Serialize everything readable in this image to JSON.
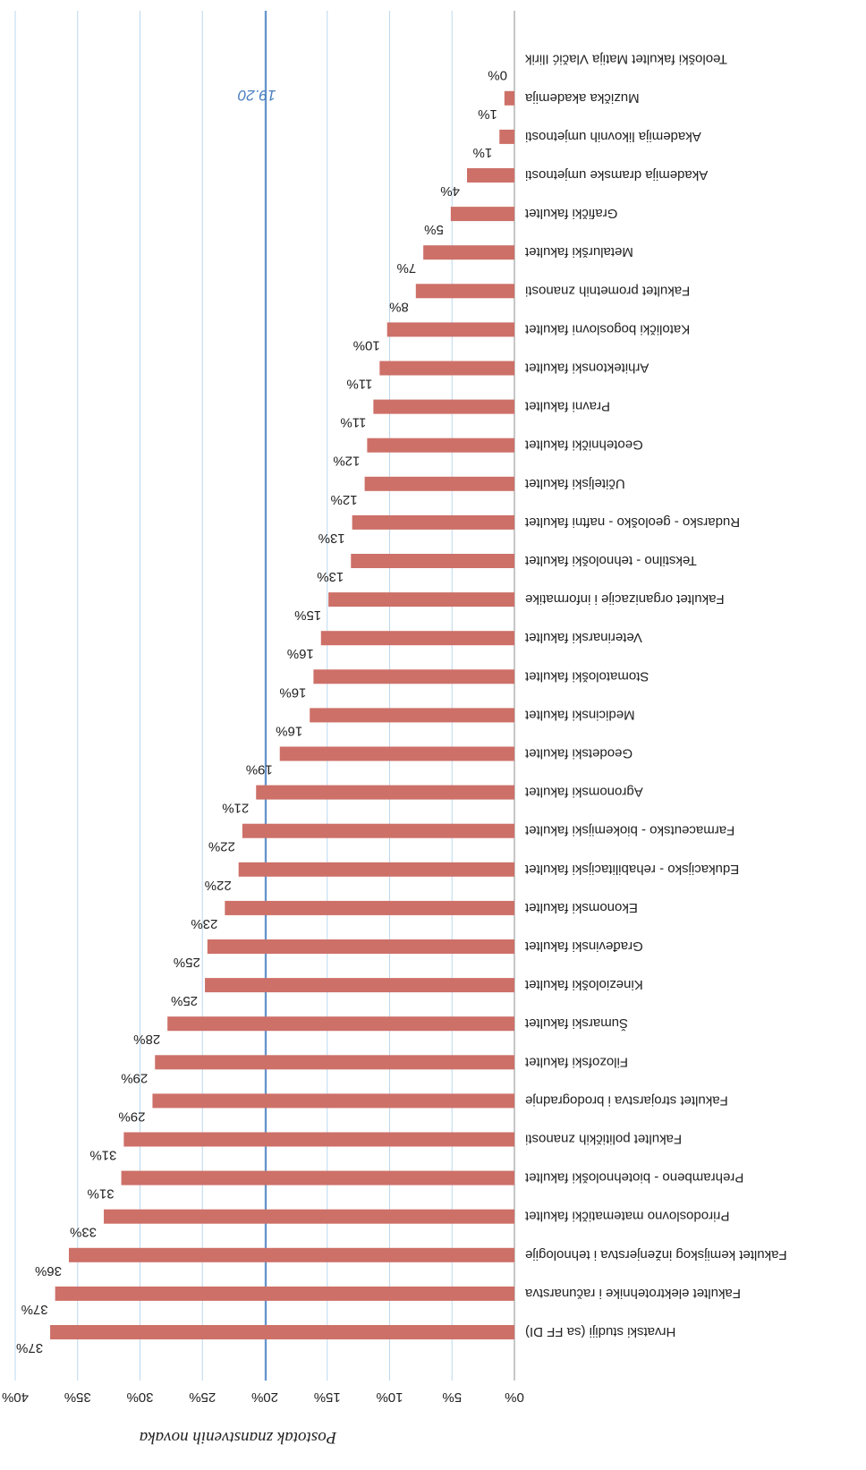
{
  "chart_data": {
    "type": "bar",
    "orientation": "horizontal",
    "rotation": "180deg",
    "ylabel": "Postotak znanstvenih novaka",
    "xlim": [
      0,
      40
    ],
    "ticks": [
      0,
      5,
      10,
      15,
      20,
      25,
      30,
      35,
      40
    ],
    "tick_labels": [
      "0%",
      "5%",
      "10%",
      "15%",
      "20%",
      "25%",
      "30%",
      "35%",
      "40%"
    ],
    "grid": true,
    "bar_color": "#cd7068",
    "grid_color": "#bcd8ef",
    "reference_line": {
      "value": 19.2,
      "label": "19.20",
      "color": "#4a7ec0"
    },
    "categories": [
      "Hrvatski studiji  (sa FF DI)",
      "Fakultet elektrotehnike i računarstva",
      "Fakultet kemijskog inženjerstva i tehnologije",
      "Prirodoslovno matematički fakultet",
      "Prehrambeno - biotehnološki fakultet",
      "Fakultet političkih znanosti",
      "Fakultet strojarstva i brodogradnje",
      "Filozofski fakultet",
      "Šumarski fakultet",
      "Kineziološki fakultet",
      "Građevinski fakultet",
      "Ekonomski fakultet",
      "Edukacijsko - rehabilitacijski fakultet",
      "Farmaceutsko - biokemijski fakultet",
      "Agronomski fakultet",
      "Geodetski fakultet",
      "Medicinski fakultet",
      "Stomatološki fakultet",
      "Veterinarski fakultet",
      "Fakultet organizacije i informatike",
      "Tekstilno - tehnološki fakultet",
      "Rudarsko - geološko - naftni fakultet",
      "Učiteljski fakultet",
      "Geotehnički fakultet",
      "Pravni fakultet",
      "Arhitektonski fakultet",
      "Katolički bogoslovni fakultet",
      "Fakultet prometnih znanosti",
      "Metalurški fakultet",
      "Grafički fakultet",
      "Akademija dramske umjetnosti",
      "Akademija likovnih umjetnosti",
      "Muzička akademija",
      "Teološki fakultet Matija Vlačić Ilirik"
    ],
    "values": [
      37.2,
      36.8,
      35.7,
      32.9,
      31.5,
      31.3,
      29.0,
      28.8,
      27.8,
      24.8,
      24.6,
      23.2,
      22.1,
      21.8,
      20.7,
      18.8,
      16.4,
      16.1,
      15.5,
      14.9,
      13.1,
      13.0,
      12.0,
      11.8,
      11.3,
      10.8,
      10.2,
      7.9,
      7.3,
      5.1,
      3.8,
      1.2,
      0.8,
      0.0
    ],
    "value_labels": [
      "37%",
      "37%",
      "36%",
      "33%",
      "31%",
      "31%",
      "29%",
      "29%",
      "28%",
      "25%",
      "25%",
      "23%",
      "22%",
      "22%",
      "21%",
      "19%",
      "16%",
      "16%",
      "16%",
      "15%",
      "13%",
      "13%",
      "12%",
      "12%",
      "11%",
      "11%",
      "10%",
      "8%",
      "7%",
      "5%",
      "4%",
      "1%",
      "1%",
      "0%"
    ]
  }
}
